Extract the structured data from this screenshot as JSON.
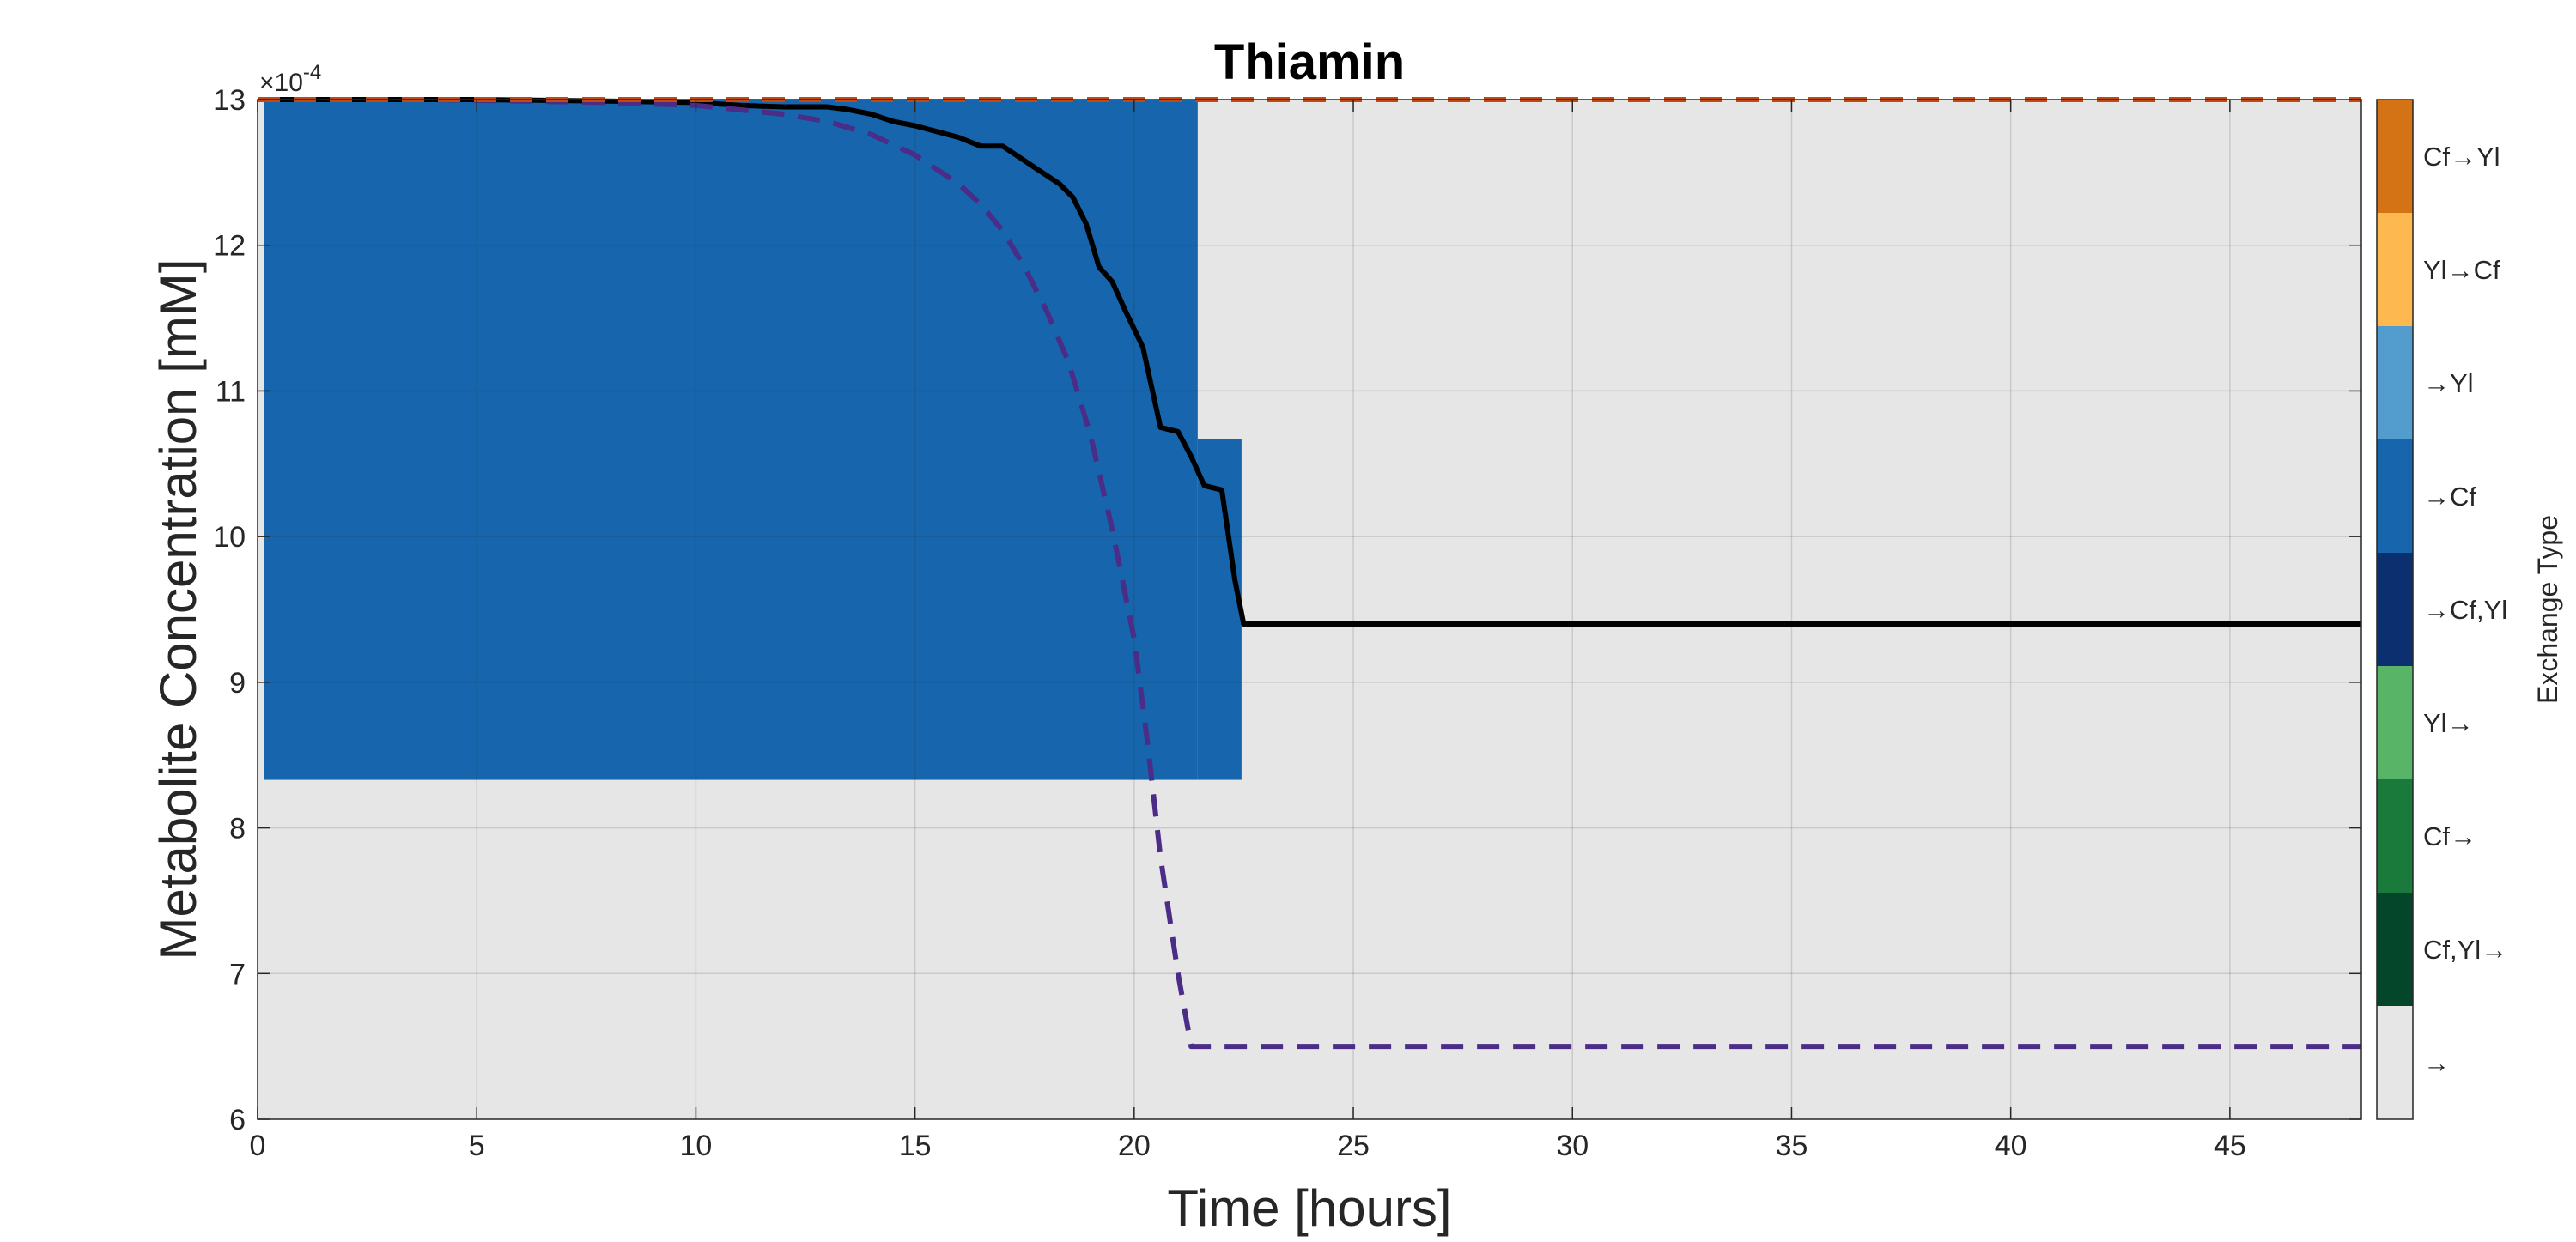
{
  "chart_data": {
    "type": "line",
    "title": "Thiamin",
    "xlabel": "Time [hours]",
    "ylabel": "Metabolite Concentration [mM]",
    "y_exponent_label": "×10",
    "y_exponent_power": "-4",
    "xlim": [
      0,
      48
    ],
    "ylim": [
      6,
      13
    ],
    "x_ticks": [
      0,
      5,
      10,
      15,
      20,
      25,
      30,
      35,
      40,
      45
    ],
    "x_tick_labels": [
      "0",
      "5",
      "10",
      "15",
      "20",
      "25",
      "30",
      "35",
      "40",
      "45"
    ],
    "y_ticks": [
      6,
      7,
      8,
      9,
      10,
      11,
      12,
      13
    ],
    "y_tick_labels": [
      "6",
      "7",
      "8",
      "9",
      "10",
      "11",
      "12",
      "13"
    ],
    "grid": true,
    "background_color": "#e6e6e6",
    "exchange_regions": [
      {
        "x0": 0.15,
        "x1": 21.45,
        "y0": 8.33,
        "y1": 13.0,
        "type": "→Cf"
      },
      {
        "x0": 21.45,
        "x1": 22.45,
        "y0": 8.33,
        "y1": 10.67,
        "type": "→Cf"
      }
    ],
    "series": [
      {
        "style": "solid",
        "color": "#000000",
        "x": [
          0,
          5,
          8,
          10,
          11,
          12,
          13,
          13.5,
          14,
          14.5,
          15,
          15.5,
          16,
          16.5,
          17,
          17.5,
          17.8,
          18,
          18.3,
          18.6,
          18.9,
          19.2,
          19.5,
          19.8,
          20.2,
          20.6,
          21,
          21.3,
          21.6,
          22,
          22.3,
          22.5,
          25,
          30,
          35,
          40,
          45,
          48
        ],
        "y": [
          13.0,
          13.0,
          12.99,
          12.98,
          12.96,
          12.95,
          12.95,
          12.93,
          12.9,
          12.85,
          12.82,
          12.78,
          12.74,
          12.68,
          12.68,
          12.58,
          12.52,
          12.48,
          12.42,
          12.33,
          12.15,
          11.85,
          11.75,
          11.55,
          11.3,
          10.75,
          10.72,
          10.55,
          10.35,
          10.32,
          9.7,
          9.4,
          9.4,
          9.4,
          9.4,
          9.4,
          9.4,
          9.4
        ]
      },
      {
        "style": "dashed",
        "color": "#4b2c87",
        "x": [
          0,
          4,
          6,
          8,
          10,
          11,
          12,
          13,
          14,
          15,
          16,
          16.5,
          17,
          17.5,
          18,
          18.5,
          19,
          19.5,
          20,
          20.3,
          20.6,
          21,
          21.3,
          22,
          25,
          30,
          35,
          40,
          45,
          48
        ],
        "y": [
          13.0,
          13.0,
          12.99,
          12.98,
          12.96,
          12.93,
          12.9,
          12.85,
          12.76,
          12.62,
          12.42,
          12.28,
          12.1,
          11.85,
          11.55,
          11.2,
          10.7,
          10.05,
          9.3,
          8.6,
          7.8,
          7.0,
          6.5,
          6.5,
          6.5,
          6.5,
          6.5,
          6.5,
          6.5,
          6.5
        ]
      },
      {
        "style": "dashed",
        "color": "#c04a12",
        "x": [
          0,
          48
        ],
        "y": [
          13.0,
          13.0
        ]
      }
    ],
    "colorbar": {
      "title": "Exchange Type",
      "entries": [
        {
          "label": "Cf→Yl",
          "color": "#d47316"
        },
        {
          "label": "Yl→Cf",
          "color": "#fdb84f"
        },
        {
          "label": "→Yl",
          "color": "#529cce"
        },
        {
          "label": "→Cf",
          "color": "#1665ad"
        },
        {
          "label": "→Cf,Yl",
          "color": "#0b2f6f"
        },
        {
          "label": "Yl→",
          "color": "#58b466"
        },
        {
          "label": "Cf→",
          "color": "#1a7a3c"
        },
        {
          "label": "Cf,Yl→",
          "color": "#03462a"
        },
        {
          "label": "→",
          "color": "#e6e6e6"
        }
      ]
    }
  }
}
